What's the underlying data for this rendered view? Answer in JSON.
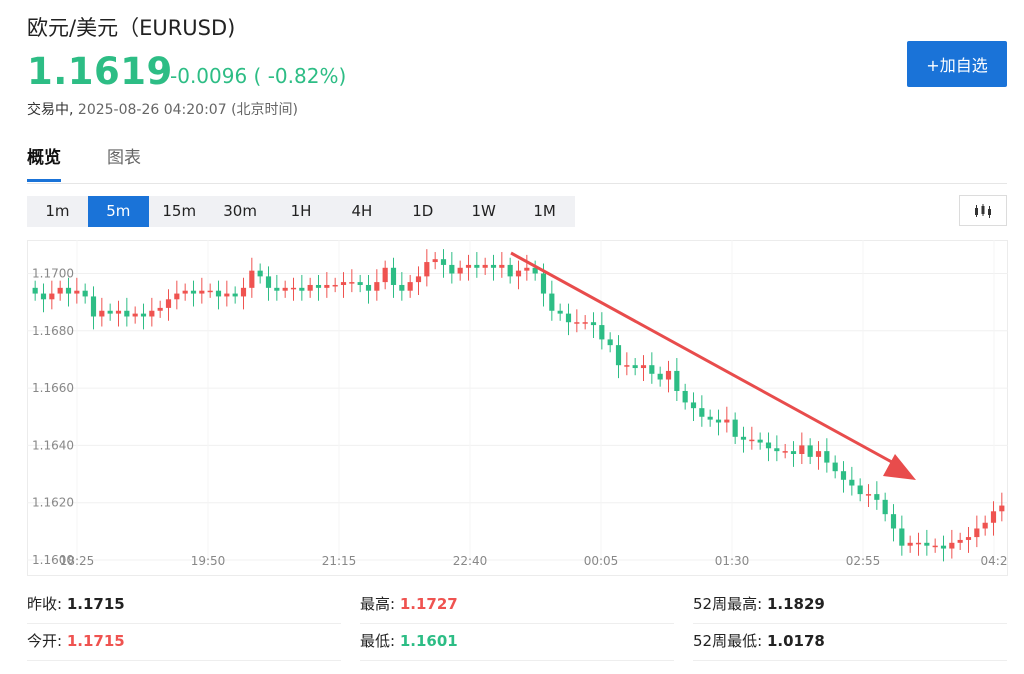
{
  "header": {
    "title": "欧元/美元（EURUSD)",
    "price": "1.1619",
    "change": "-0.0096 ( -0.82%)",
    "status": "交易中,",
    "timestamp": "2025-08-26 04:20:07",
    "timezone": "(北京时间)",
    "add_button": "+加自选"
  },
  "tabs": [
    {
      "label": "概览",
      "active": true
    },
    {
      "label": "图表",
      "active": false
    }
  ],
  "intervals": [
    {
      "label": "1m",
      "active": false
    },
    {
      "label": "5m",
      "active": true
    },
    {
      "label": "15m",
      "active": false
    },
    {
      "label": "30m",
      "active": false
    },
    {
      "label": "1H",
      "active": false
    },
    {
      "label": "4H",
      "active": false
    },
    {
      "label": "1D",
      "active": false
    },
    {
      "label": "1W",
      "active": false
    },
    {
      "label": "1M",
      "active": false
    }
  ],
  "chart_type_icon": "candlestick-icon",
  "colors": {
    "up": "#ef5350",
    "down": "#2dbd85",
    "accent": "#1a73d8",
    "arrow": "#e84c4c"
  },
  "chart_data": {
    "type": "candlestick",
    "y_ticks": [
      "1.1700",
      "1.1680",
      "1.1660",
      "1.1640",
      "1.1620",
      "1.1600"
    ],
    "x_ticks": [
      "18:25",
      "19:50",
      "21:15",
      "22:40",
      "00:05",
      "01:30",
      "02:55",
      "04:2"
    ],
    "ylim": [
      1.16,
      1.1711
    ],
    "grid": true,
    "annotation": "red-downward-arrow",
    "closes": [
      1.1693,
      1.1691,
      1.1693,
      1.1695,
      1.1693,
      1.1694,
      1.1692,
      1.1685,
      1.1687,
      1.1686,
      1.1687,
      1.1685,
      1.1686,
      1.1685,
      1.1687,
      1.1688,
      1.1691,
      1.1693,
      1.1694,
      1.1693,
      1.1694,
      1.1694,
      1.1692,
      1.1693,
      1.1692,
      1.1695,
      1.1701,
      1.1699,
      1.1695,
      1.1694,
      1.1695,
      1.1695,
      1.1694,
      1.1696,
      1.1695,
      1.1696,
      1.1696,
      1.1697,
      1.1697,
      1.1696,
      1.1694,
      1.1697,
      1.1702,
      1.1696,
      1.1694,
      1.1697,
      1.1699,
      1.1704,
      1.1705,
      1.1703,
      1.17,
      1.1702,
      1.1703,
      1.1702,
      1.1703,
      1.1702,
      1.1703,
      1.1699,
      1.1701,
      1.1702,
      1.17,
      1.1693,
      1.1687,
      1.1686,
      1.1683,
      1.1683,
      1.1683,
      1.1682,
      1.1677,
      1.1675,
      1.1668,
      1.1668,
      1.1667,
      1.1668,
      1.1665,
      1.1663,
      1.1666,
      1.1659,
      1.1655,
      1.1653,
      1.165,
      1.1649,
      1.1648,
      1.1649,
      1.1643,
      1.1642,
      1.1642,
      1.1641,
      1.1639,
      1.1638,
      1.1638,
      1.1637,
      1.164,
      1.1636,
      1.1638,
      1.1634,
      1.1631,
      1.1628,
      1.1626,
      1.1623,
      1.1623,
      1.1621,
      1.1616,
      1.1611,
      1.1605,
      1.1606,
      1.1606,
      1.1605,
      1.1605,
      1.1604,
      1.1606,
      1.1607,
      1.1608,
      1.1611,
      1.1613,
      1.1617,
      1.1619
    ]
  },
  "stats": [
    [
      {
        "label": "昨收:",
        "value": "1.1715",
        "tone": "neutral"
      },
      {
        "label": "最高:",
        "value": "1.1727",
        "tone": "red"
      },
      {
        "label": "52周最高:",
        "value": "1.1829",
        "tone": "neutral"
      }
    ],
    [
      {
        "label": "今开:",
        "value": "1.1715",
        "tone": "red"
      },
      {
        "label": "最低:",
        "value": "1.1601",
        "tone": "green"
      },
      {
        "label": "52周最低:",
        "value": "1.0178",
        "tone": "neutral"
      }
    ]
  ]
}
